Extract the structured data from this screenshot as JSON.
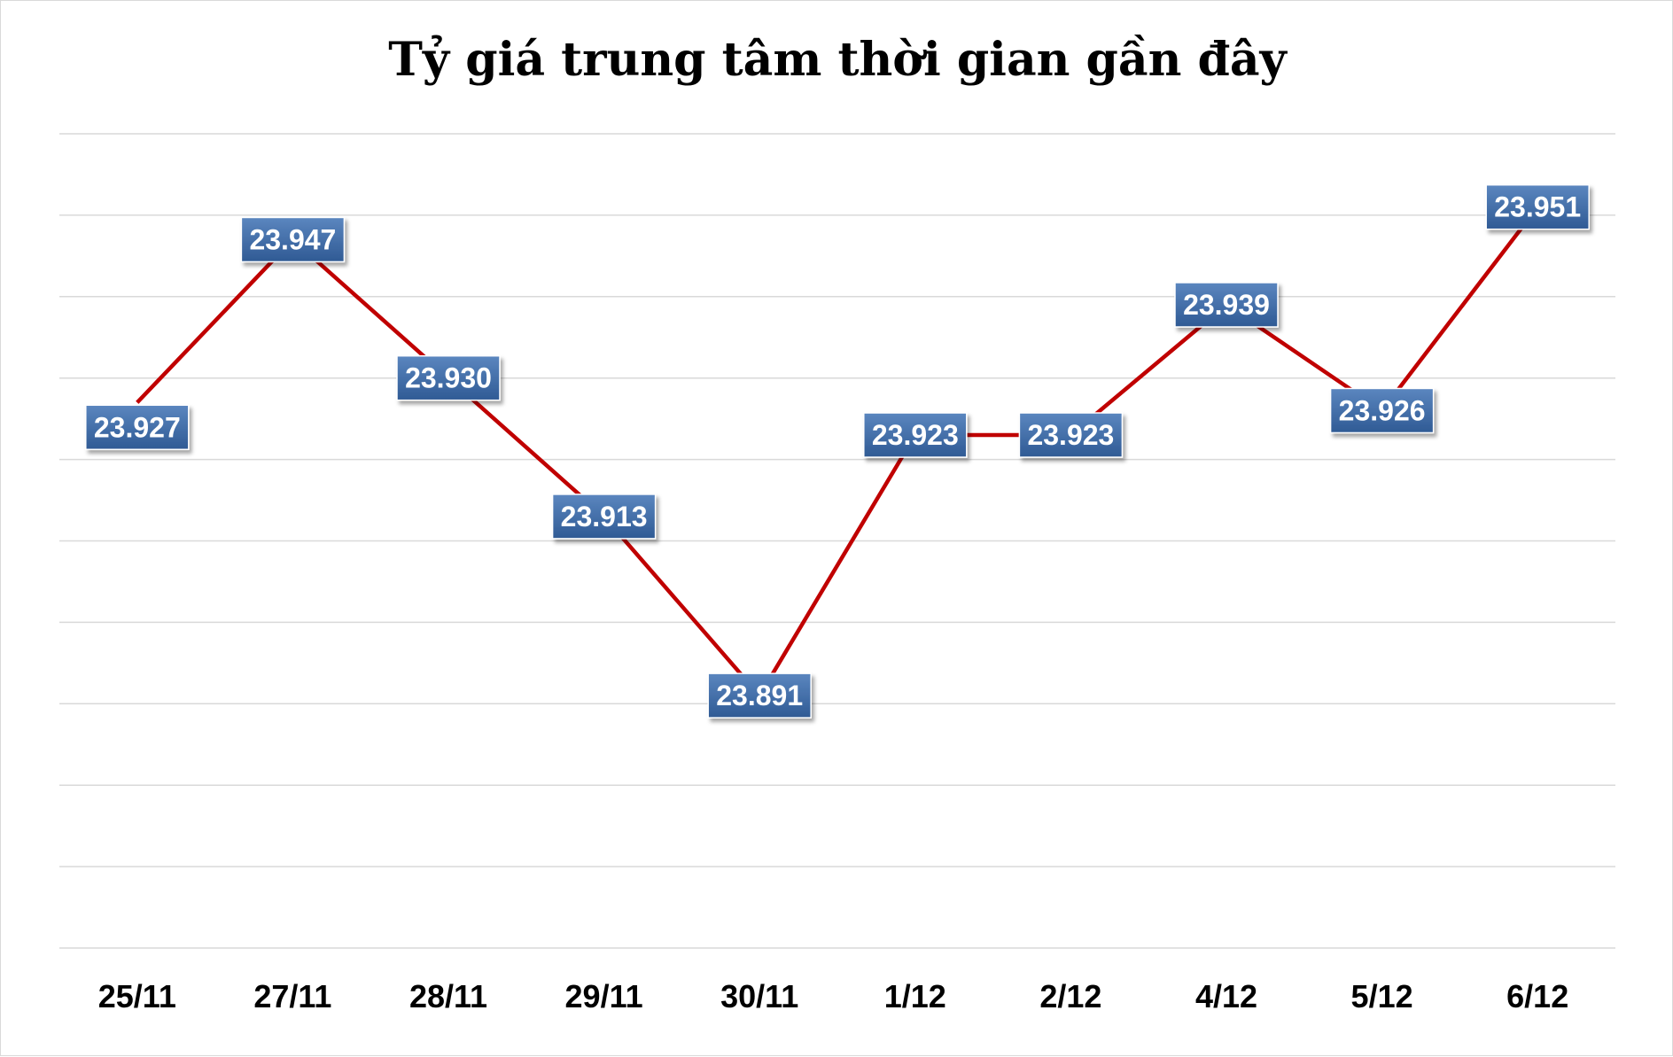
{
  "chart_data": {
    "type": "line",
    "title": "Tỷ giá trung tâm thời gian gần đây",
    "categories": [
      "25/11",
      "27/11",
      "28/11",
      "29/11",
      "30/11",
      "1/12",
      "2/12",
      "4/12",
      "5/12",
      "6/12"
    ],
    "series": [
      {
        "values": [
          23927,
          23947,
          23930,
          23913,
          23891,
          23923,
          23923,
          23939,
          23926,
          23951
        ],
        "labels": [
          "23.927",
          "23.947",
          "23.930",
          "23.913",
          "23.891",
          "23.923",
          "23.923",
          "23.939",
          "23.926",
          "23.951"
        ],
        "color": "#c00000"
      }
    ],
    "ylim": [
      23860,
      23960
    ],
    "gridlines": true,
    "label_color": "#3a66a0"
  }
}
